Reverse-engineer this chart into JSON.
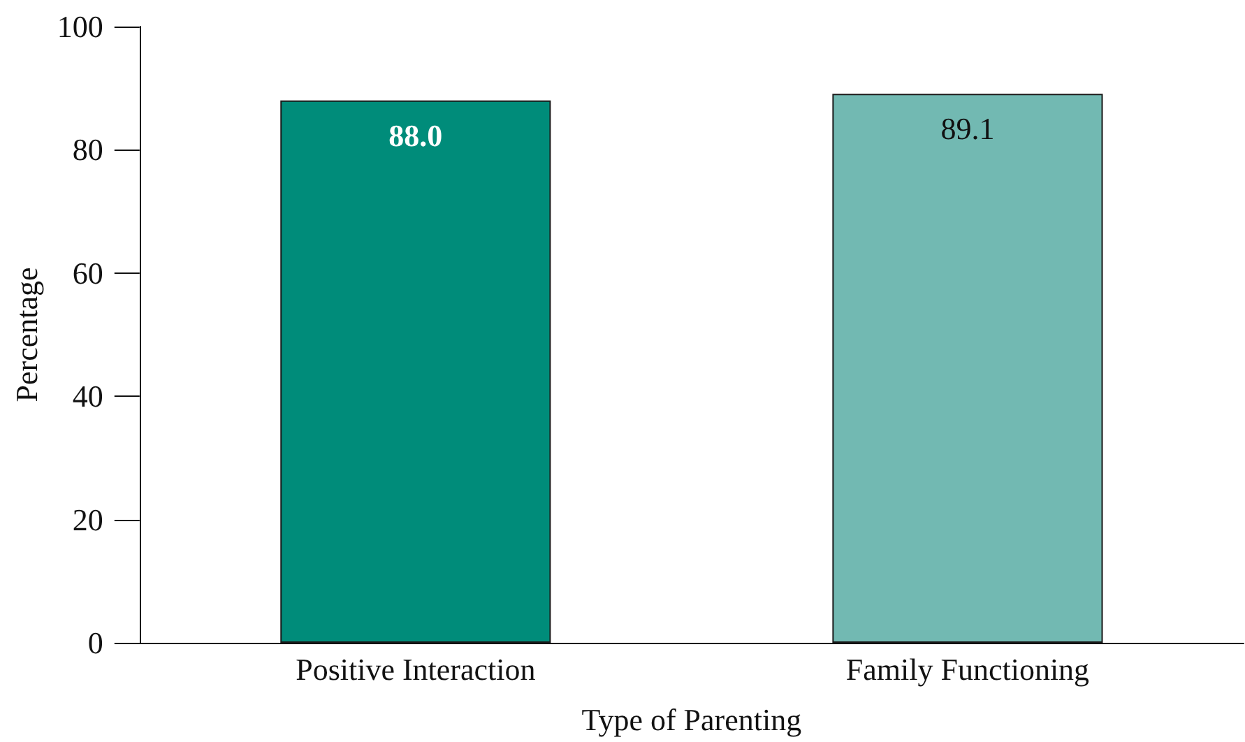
{
  "chart_data": {
    "type": "bar",
    "xlabel": "Type of Parenting",
    "ylabel": "Percentage",
    "categories": [
      "Positive Interaction",
      "Family Functioning"
    ],
    "values": [
      88.0,
      89.1
    ],
    "colors": [
      "#008c7a",
      "#72b9b2"
    ],
    "value_labels": [
      "88.0",
      "89.1"
    ],
    "ylim": [
      0,
      100
    ],
    "yticks": [
      0,
      20,
      40,
      60,
      80,
      100
    ],
    "grid": false
  }
}
